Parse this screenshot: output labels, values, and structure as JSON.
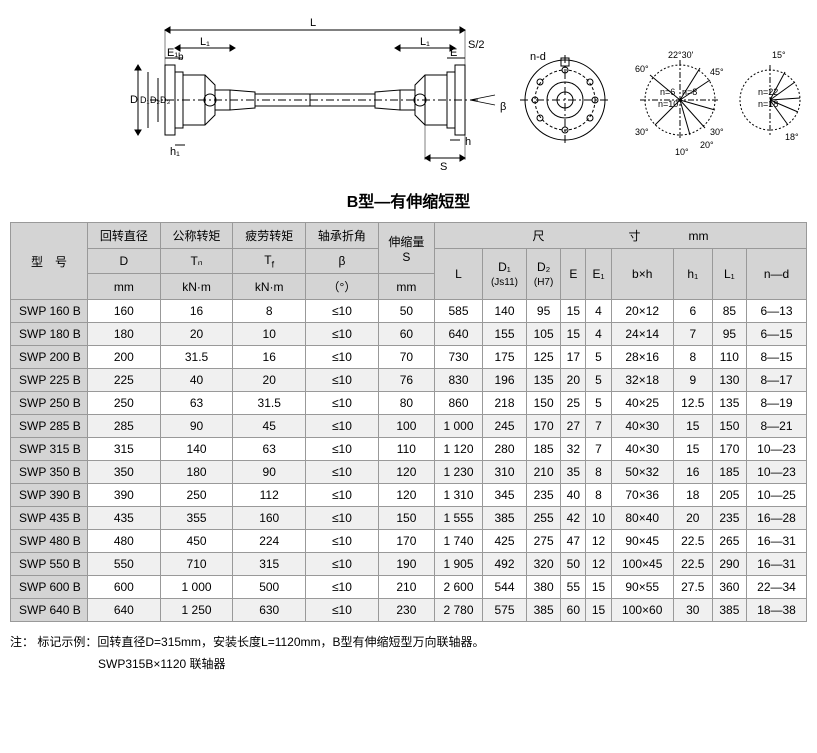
{
  "title": "B型—有伸缩短型",
  "diagram_labels": {
    "L": "L",
    "L1": "L₁",
    "E1": "E₁",
    "E": "E",
    "S": "S",
    "S2": "S/2",
    "D": "D",
    "D1": "D₁",
    "D2": "D₂",
    "D3": "D₃",
    "b": "b",
    "h1": "h₁",
    "h": "h",
    "beta": "β",
    "nd": "n-d",
    "n6": "n=6",
    "n8": "n=8",
    "n10": "n=10",
    "n22": "n=22",
    "n18": "n=18",
    "a22": "22°30'",
    "a60": "60°",
    "a45": "45°",
    "a30": "30°",
    "a20": "20°",
    "a10": "10°",
    "a15": "15°",
    "a18": "18°"
  },
  "header": {
    "model": "型　号",
    "D": {
      "label": "回转直径",
      "sym": "D",
      "unit": "mm"
    },
    "Tn": {
      "label": "公称转矩",
      "sym": "Tₙ",
      "unit": "kN·m"
    },
    "Tf": {
      "label": "疲劳转矩",
      "sym": "T_f",
      "unit": "kN·m"
    },
    "beta": {
      "label": "轴承折角",
      "sym": "β",
      "unit": "（°）"
    },
    "S": {
      "label": "伸缩量",
      "sym": "S",
      "unit": "mm"
    },
    "dims_group": "尺　　　　　　　寸　　　　mm",
    "L": "L",
    "D1": "D₁",
    "D1u": "(Js11)",
    "D2": "D₂",
    "D2u": "(H7)",
    "E": "E",
    "E1": "E₁",
    "bh": "b×h",
    "h1": "h₁",
    "L1": "L₁",
    "nd": "n—d"
  },
  "rows": [
    {
      "m": "SWP 160 B",
      "D": "160",
      "Tn": "16",
      "Tf": "8",
      "b": "≤10",
      "S": "50",
      "L": "585",
      "D1": "140",
      "D2": "95",
      "E": "15",
      "E1": "4",
      "bh": "20×12",
      "h1": "6",
      "L1": "85",
      "nd": "6—13"
    },
    {
      "m": "SWP 180 B",
      "D": "180",
      "Tn": "20",
      "Tf": "10",
      "b": "≤10",
      "S": "60",
      "L": "640",
      "D1": "155",
      "D2": "105",
      "E": "15",
      "E1": "4",
      "bh": "24×14",
      "h1": "7",
      "L1": "95",
      "nd": "6—15"
    },
    {
      "m": "SWP 200 B",
      "D": "200",
      "Tn": "31.5",
      "Tf": "16",
      "b": "≤10",
      "S": "70",
      "L": "730",
      "D1": "175",
      "D2": "125",
      "E": "17",
      "E1": "5",
      "bh": "28×16",
      "h1": "8",
      "L1": "110",
      "nd": "8—15"
    },
    {
      "m": "SWP 225 B",
      "D": "225",
      "Tn": "40",
      "Tf": "20",
      "b": "≤10",
      "S": "76",
      "L": "830",
      "D1": "196",
      "D2": "135",
      "E": "20",
      "E1": "5",
      "bh": "32×18",
      "h1": "9",
      "L1": "130",
      "nd": "8—17"
    },
    {
      "m": "SWP 250 B",
      "D": "250",
      "Tn": "63",
      "Tf": "31.5",
      "b": "≤10",
      "S": "80",
      "L": "860",
      "D1": "218",
      "D2": "150",
      "E": "25",
      "E1": "5",
      "bh": "40×25",
      "h1": "12.5",
      "L1": "135",
      "nd": "8—19"
    },
    {
      "m": "SWP 285 B",
      "D": "285",
      "Tn": "90",
      "Tf": "45",
      "b": "≤10",
      "S": "100",
      "L": "1 000",
      "D1": "245",
      "D2": "170",
      "E": "27",
      "E1": "7",
      "bh": "40×30",
      "h1": "15",
      "L1": "150",
      "nd": "8—21"
    },
    {
      "m": "SWP 315 B",
      "D": "315",
      "Tn": "140",
      "Tf": "63",
      "b": "≤10",
      "S": "110",
      "L": "1 120",
      "D1": "280",
      "D2": "185",
      "E": "32",
      "E1": "7",
      "bh": "40×30",
      "h1": "15",
      "L1": "170",
      "nd": "10—23"
    },
    {
      "m": "SWP 350 B",
      "D": "350",
      "Tn": "180",
      "Tf": "90",
      "b": "≤10",
      "S": "120",
      "L": "1 230",
      "D1": "310",
      "D2": "210",
      "E": "35",
      "E1": "8",
      "bh": "50×32",
      "h1": "16",
      "L1": "185",
      "nd": "10—23"
    },
    {
      "m": "SWP 390 B",
      "D": "390",
      "Tn": "250",
      "Tf": "112",
      "b": "≤10",
      "S": "120",
      "L": "1 310",
      "D1": "345",
      "D2": "235",
      "E": "40",
      "E1": "8",
      "bh": "70×36",
      "h1": "18",
      "L1": "205",
      "nd": "10—25"
    },
    {
      "m": "SWP 435 B",
      "D": "435",
      "Tn": "355",
      "Tf": "160",
      "b": "≤10",
      "S": "150",
      "L": "1 555",
      "D1": "385",
      "D2": "255",
      "E": "42",
      "E1": "10",
      "bh": "80×40",
      "h1": "20",
      "L1": "235",
      "nd": "16—28"
    },
    {
      "m": "SWP 480 B",
      "D": "480",
      "Tn": "450",
      "Tf": "224",
      "b": "≤10",
      "S": "170",
      "L": "1 740",
      "D1": "425",
      "D2": "275",
      "E": "47",
      "E1": "12",
      "bh": "90×45",
      "h1": "22.5",
      "L1": "265",
      "nd": "16—31"
    },
    {
      "m": "SWP 550 B",
      "D": "550",
      "Tn": "710",
      "Tf": "315",
      "b": "≤10",
      "S": "190",
      "L": "1 905",
      "D1": "492",
      "D2": "320",
      "E": "50",
      "E1": "12",
      "bh": "100×45",
      "h1": "22.5",
      "L1": "290",
      "nd": "16—31"
    },
    {
      "m": "SWP 600 B",
      "D": "600",
      "Tn": "1 000",
      "Tf": "500",
      "b": "≤10",
      "S": "210",
      "L": "2 600",
      "D1": "544",
      "D2": "380",
      "E": "55",
      "E1": "15",
      "bh": "90×55",
      "h1": "27.5",
      "L1": "360",
      "nd": "22—34"
    },
    {
      "m": "SWP 640 B",
      "D": "640",
      "Tn": "1 250",
      "Tf": "630",
      "b": "≤10",
      "S": "230",
      "L": "2 780",
      "D1": "575",
      "D2": "385",
      "E": "60",
      "E1": "15",
      "bh": "100×60",
      "h1": "30",
      "L1": "385",
      "nd": "18—38"
    }
  ],
  "note": {
    "prefix": "注：",
    "l1": "标记示例：回转直径D=315mm，安装长度L=1120mm，B型有伸缩短型万向联轴器。",
    "l2": "SWP315B×1120  联轴器"
  },
  "colors": {
    "line": "#000",
    "bg": "#fff"
  }
}
